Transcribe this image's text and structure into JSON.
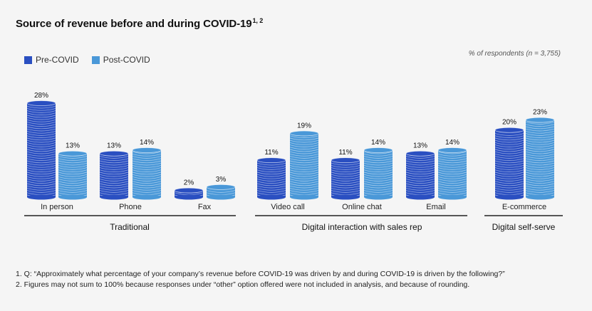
{
  "title": "Source of revenue before and during COVID-19",
  "title_sup": "1, 2",
  "units_note": "% of respondents (n = 3,755)",
  "colors": {
    "pre": "#2a4fc1",
    "post": "#4a98d8"
  },
  "chart_data": {
    "type": "bar",
    "title": "Source of revenue before and during COVID-19",
    "series": [
      {
        "name": "Pre-COVID",
        "values": [
          28,
          13,
          2,
          11,
          11,
          13,
          20
        ]
      },
      {
        "name": "Post-COVID",
        "values": [
          13,
          14,
          3,
          19,
          14,
          14,
          23
        ]
      }
    ],
    "categories": [
      "In person",
      "Phone",
      "Fax",
      "Video call",
      "Online chat",
      "Email",
      "E-commerce"
    ],
    "value_labels": {
      "pre": [
        "28%",
        "13%",
        "2%",
        "11%",
        "11%",
        "13%",
        "20%"
      ],
      "post": [
        "13%",
        "14%",
        "3%",
        "19%",
        "14%",
        "14%",
        "23%"
      ]
    },
    "groups": [
      {
        "label": "Traditional",
        "categories": [
          "In person",
          "Phone",
          "Fax"
        ]
      },
      {
        "label": "Digital interaction with sales rep",
        "categories": [
          "Video call",
          "Online chat",
          "Email"
        ]
      },
      {
        "label": "Digital self-serve",
        "categories": [
          "E-commerce"
        ]
      }
    ],
    "legend_position": "top-left",
    "grid": false,
    "ylim": [
      0,
      28
    ]
  },
  "notes": [
    "1. Q: “Approximately what percentage of your company’s revenue before COVID-19 was driven by and during COVID-19 is driven by the following?”",
    "2. Figures may not sum to 100% because responses under “other” option offered were not included in analysis, and because of rounding."
  ]
}
